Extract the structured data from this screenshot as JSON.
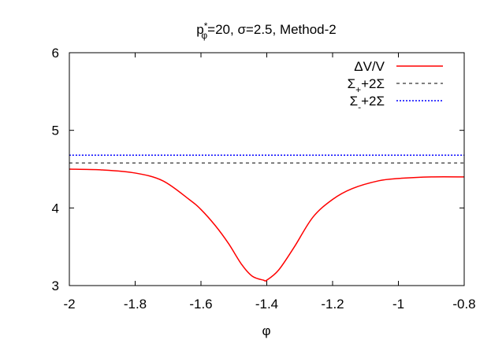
{
  "chart_data": {
    "type": "line",
    "title": {
      "base": "p",
      "sup": "*",
      "sub": "φ",
      "rest": "=20, σ=2.5, Method-2"
    },
    "xlabel": "φ",
    "ylabel": "",
    "xlim": [
      -2,
      -0.8
    ],
    "ylim": [
      3,
      6
    ],
    "xticks": [
      "-2",
      "-1.8",
      "-1.6",
      "-1.4",
      "-1.2",
      "-1",
      "-0.8"
    ],
    "xtick_values": [
      -2,
      -1.8,
      -1.6,
      -1.4,
      -1.2,
      -1,
      -0.8
    ],
    "yticks": [
      "3",
      "4",
      "5",
      "6"
    ],
    "ytick_values": [
      3,
      4,
      5,
      6
    ],
    "grid": false,
    "legend_placement": "top-right",
    "series": [
      {
        "name": "ΔV/V",
        "label": {
          "base": "ΔV/V",
          "sub": "",
          "rest": ""
        },
        "color": "#ff0000",
        "style": "solid",
        "x": [
          -2,
          -1.9,
          -1.8,
          -1.716,
          -1.636,
          -1.6,
          -1.556,
          -1.516,
          -1.476,
          -1.444,
          -1.41,
          -1.4,
          -1.364,
          -1.316,
          -1.26,
          -1.2,
          -1.14,
          -1.06,
          -1.0,
          -0.9,
          -0.8
        ],
        "y": [
          4.5,
          4.49,
          4.45,
          4.35,
          4.11,
          3.98,
          3.77,
          3.54,
          3.27,
          3.12,
          3.07,
          3.07,
          3.2,
          3.5,
          3.88,
          4.11,
          4.25,
          4.35,
          4.38,
          4.4,
          4.4
        ]
      },
      {
        "name": "Σ++2Σ",
        "label": {
          "base": "Σ",
          "sub": "+",
          "rest": "+2Σ"
        },
        "color": "#000000",
        "style": "dashed",
        "x": [
          -2,
          -0.8
        ],
        "y": [
          4.58,
          4.58
        ]
      },
      {
        "name": "Σ-+2Σ",
        "label": {
          "base": "Σ",
          "sub": "-",
          "rest": "+2Σ"
        },
        "color": "#0000ff",
        "style": "dotted",
        "x": [
          -2,
          -0.8
        ],
        "y": [
          4.68,
          4.68
        ]
      }
    ]
  }
}
